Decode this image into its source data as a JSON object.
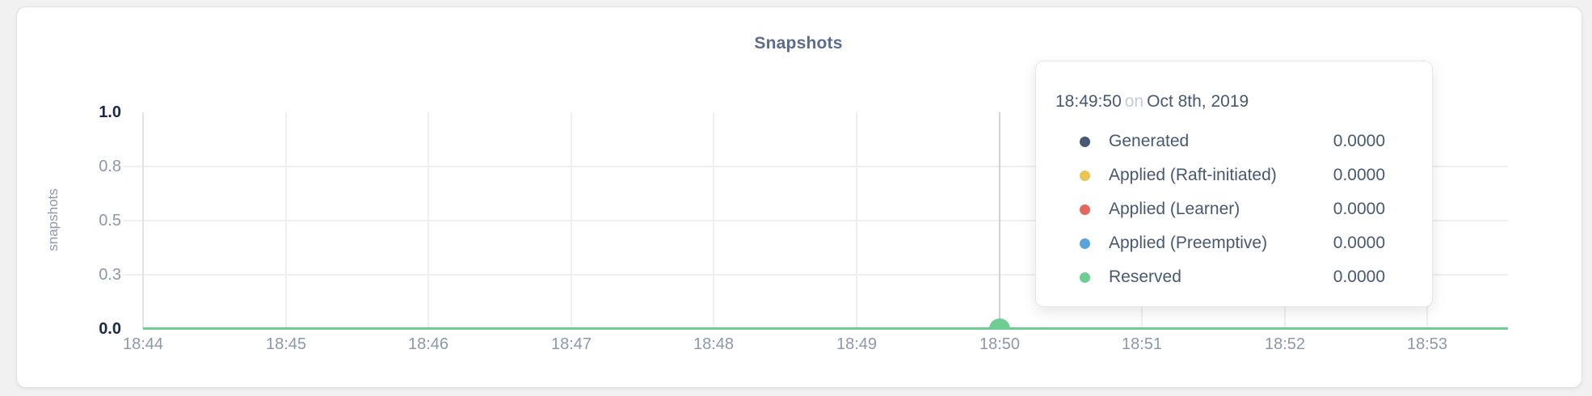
{
  "chart": {
    "title": "Snapshots",
    "ylabel": "snapshots"
  },
  "chart_data": {
    "type": "line",
    "title": "Snapshots",
    "xlabel": "",
    "ylabel": "snapshots",
    "x": [
      "18:44",
      "18:45",
      "18:46",
      "18:47",
      "18:48",
      "18:49",
      "18:50",
      "18:51",
      "18:52",
      "18:53"
    ],
    "y_ticks": [
      {
        "label": "1.0",
        "value": 1.0,
        "emphasis": true
      },
      {
        "label": "0.8",
        "value": 0.75,
        "emphasis": false
      },
      {
        "label": "0.5",
        "value": 0.5,
        "emphasis": false
      },
      {
        "label": "0.3",
        "value": 0.25,
        "emphasis": false
      },
      {
        "label": "0.0",
        "value": 0.0,
        "emphasis": true
      }
    ],
    "ylim": [
      0,
      1
    ],
    "grid": true,
    "legend_position": "tooltip-only",
    "series": [
      {
        "name": "Generated",
        "color": "#475872",
        "values": [
          0,
          0,
          0,
          0,
          0,
          0,
          0,
          0,
          0,
          0
        ]
      },
      {
        "name": "Applied (Raft-initiated)",
        "color": "#eac552",
        "values": [
          0,
          0,
          0,
          0,
          0,
          0,
          0,
          0,
          0,
          0
        ]
      },
      {
        "name": "Applied (Learner)",
        "color": "#e2675f",
        "values": [
          0,
          0,
          0,
          0,
          0,
          0,
          0,
          0,
          0,
          0
        ]
      },
      {
        "name": "Applied (Preemptive)",
        "color": "#59a5db",
        "values": [
          0,
          0,
          0,
          0,
          0,
          0,
          0,
          0,
          0,
          0
        ]
      },
      {
        "name": "Reserved",
        "color": "#6ecd91",
        "values": [
          0,
          0,
          0,
          0,
          0,
          0,
          0,
          0,
          0,
          0
        ]
      }
    ],
    "hover": {
      "at_tick": "18:50",
      "marker_color": "#6ecd91"
    }
  },
  "tooltip": {
    "time": "18:49:50",
    "conjunction": "on",
    "date": "Oct 8th, 2019",
    "rows": [
      {
        "name": "Generated",
        "color": "#475872",
        "value": "0.0000"
      },
      {
        "name": "Applied (Raft-initiated)",
        "color": "#eac552",
        "value": "0.0000"
      },
      {
        "name": "Applied (Learner)",
        "color": "#e2675f",
        "value": "0.0000"
      },
      {
        "name": "Applied (Preemptive)",
        "color": "#59a5db",
        "value": "0.0000"
      },
      {
        "name": "Reserved",
        "color": "#6ecd91",
        "value": "0.0000"
      }
    ]
  }
}
